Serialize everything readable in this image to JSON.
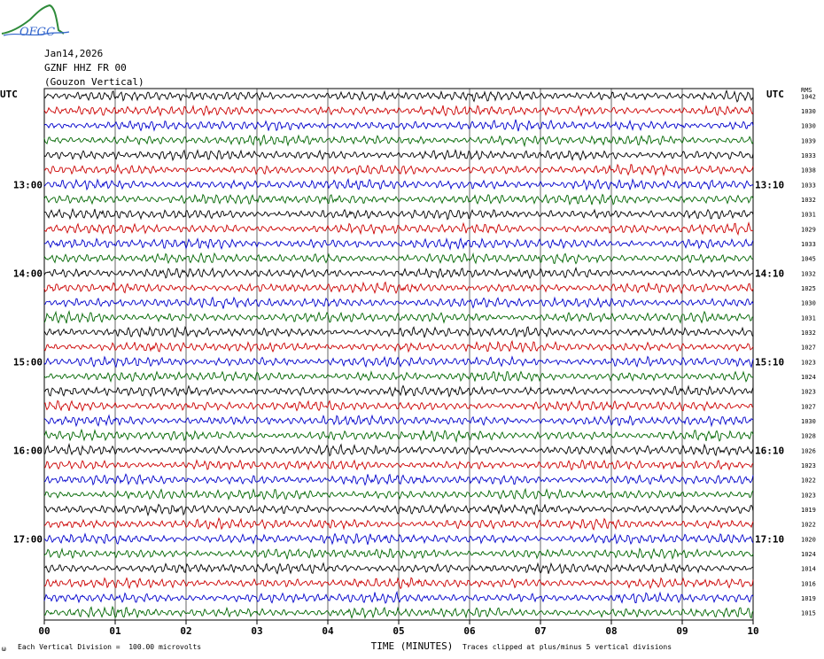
{
  "header": {
    "logo_text": "OFGC",
    "date": "Jan14,2026",
    "station": "GZNF HHZ FR 00",
    "location": "(Gouzon Vertical)"
  },
  "axis": {
    "left_label": "UTC",
    "right_label": "UTC",
    "rms_label": "RMS",
    "xlabel": "TIME (MINUTES)"
  },
  "footer": {
    "left_mark": "ω",
    "scale_note": "Each Vertical Division =  100.00 microvolts",
    "clip_note": "Traces clipped at plus/minus 5 vertical divisions"
  },
  "colors": {
    "trace_cycle": [
      "#000000",
      "#cc0000",
      "#0000cc",
      "#006600"
    ],
    "grid": "#000000"
  },
  "chart_data": {
    "type": "line",
    "title": "",
    "xlabel": "TIME (MINUTES)",
    "ylabel": "",
    "xlim": [
      0,
      10
    ],
    "x_ticks": [
      "00",
      "01",
      "02",
      "03",
      "04",
      "05",
      "06",
      "07",
      "08",
      "09",
      "10"
    ],
    "grid": true,
    "left_time_labels": [
      {
        "row": 6,
        "text": "13:00"
      },
      {
        "row": 12,
        "text": "14:00"
      },
      {
        "row": 18,
        "text": "15:00"
      },
      {
        "row": 24,
        "text": "16:00"
      },
      {
        "row": 30,
        "text": "17:00"
      }
    ],
    "right_time_labels": [
      {
        "row": 6,
        "text": "13:10"
      },
      {
        "row": 12,
        "text": "14:10"
      },
      {
        "row": 18,
        "text": "15:10"
      },
      {
        "row": 24,
        "text": "16:10"
      },
      {
        "row": 30,
        "text": "17:10"
      }
    ],
    "rms_values": [
      "1042",
      "1030",
      "1030",
      "1039",
      "1033",
      "1038",
      "1033",
      "1032",
      "1031",
      "1029",
      "1033",
      "1045",
      "1032",
      "1025",
      "1030",
      "1031",
      "1032",
      "1027",
      "1023",
      "1024",
      "1023",
      "1027",
      "1030",
      "1028",
      "1026",
      "1023",
      "1022",
      "1023",
      "1019",
      "1022",
      "1020",
      "1024",
      "1014",
      "1016",
      "1019",
      "1015"
    ]
  }
}
